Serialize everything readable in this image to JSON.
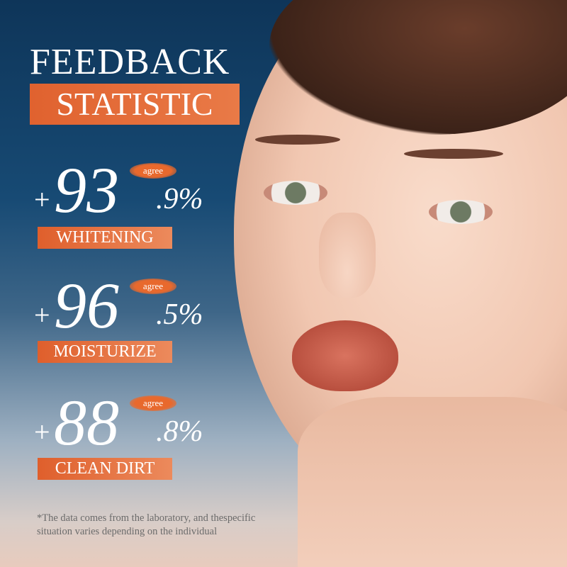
{
  "title": "FEEDBACK",
  "subtitle": "STATISTIC",
  "stats": [
    {
      "plus": "+",
      "integer": "93",
      "decimal": ".9%",
      "badge": "agree",
      "label": "WHITENING",
      "value": 93.9
    },
    {
      "plus": "+",
      "integer": "96",
      "decimal": ".5%",
      "badge": "agree",
      "label": "MOISTURIZE",
      "value": 96.5
    },
    {
      "plus": "+",
      "integer": "88",
      "decimal": ".8%",
      "badge": "agree",
      "label": "CLEAN DIRT",
      "value": 88.8
    }
  ],
  "footnote": "*The data comes from the laboratory, and thespecific situation varies depending on the individual",
  "colors": {
    "accent": "#e0622f",
    "background_top": "#0e3559"
  }
}
